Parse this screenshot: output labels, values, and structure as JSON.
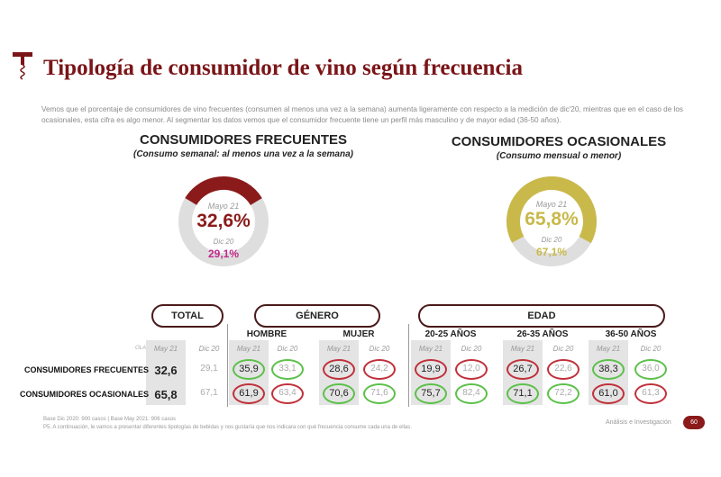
{
  "title": "Tipología de consumidor de vino según frecuencia",
  "intro": "Vemos que el porcentaje de consumidores de vino frecuentes (consumen al menos una vez a la semana) aumenta ligeramente con respecto a la medición de dic'20, mientras que en el caso de los ocasionales, esta cifra es algo menor.  Al segmentar los datos vemos que el consumidor frecuente tiene un perfil más masculino y de mayor edad (36-50 años).",
  "frecuentes": {
    "title": "CONSUMIDORES FRECUENTES",
    "subtitle": "(Consumo semanal: al menos una vez a la semana)",
    "label_now": "Mayo 21",
    "value_now": "32,6%",
    "pct": 32.6,
    "label_prev": "Dic 20",
    "value_prev": "29,1%",
    "color": "#8b1a1a",
    "prev_color": "#c0288a"
  },
  "ocasionales": {
    "title": "CONSUMIDORES OCASIONALES",
    "subtitle": "(Consumo mensual o menor)",
    "label_now": "Mayo 21",
    "value_now": "65,8%",
    "pct": 65.8,
    "label_prev": "Dic 20",
    "value_prev": "67,1%",
    "color": "#c9b94a",
    "prev_color": "#c9b94a"
  },
  "table": {
    "total_label": "TOTAL",
    "genero_label": "GÉNERO",
    "edad_label": "EDAD",
    "groups": [
      "HOMBRE",
      "MUJER",
      "20-25 AÑOS",
      "26-35 AÑOS",
      "36-50 AÑOS"
    ],
    "ola_label": "OLA",
    "col_now": "May 21",
    "col_prev": "Dic 20",
    "rows": [
      {
        "label": "CONSUMIDORES FRECUENTES",
        "values": [
          "32,6",
          "29,1",
          "35,9",
          "33,1",
          "28,6",
          "24,2",
          "19,9",
          "12,0",
          "26,7",
          "22,6",
          "38,3",
          "36,0"
        ],
        "marks": [
          "",
          "",
          "g",
          "g",
          "r",
          "r",
          "r",
          "r",
          "r",
          "r",
          "g",
          "g"
        ]
      },
      {
        "label": "CONSUMIDORES OCASIONALES",
        "values": [
          "65,8",
          "67,1",
          "61,9",
          "63,4",
          "70,6",
          "71,6",
          "75,7",
          "82,4",
          "71,1",
          "72,2",
          "61,0",
          "61,3"
        ],
        "marks": [
          "",
          "",
          "r",
          "r",
          "g",
          "g",
          "g",
          "g",
          "g",
          "g",
          "r",
          "r"
        ]
      }
    ]
  },
  "colors": {
    "green": "#5cc04a",
    "red": "#c0303a"
  },
  "footer": {
    "line1": "Base Dic 2020: 900 casos | Base May 2021: 906 casos",
    "line2": "P5. A continuación, le vamos a presentar diferentes tipologías de bebidas y nos gustaría que nos indicara con qué frecuencia consume cada una de ellas.",
    "brand": "Análisis e Investigación",
    "page": "60"
  }
}
